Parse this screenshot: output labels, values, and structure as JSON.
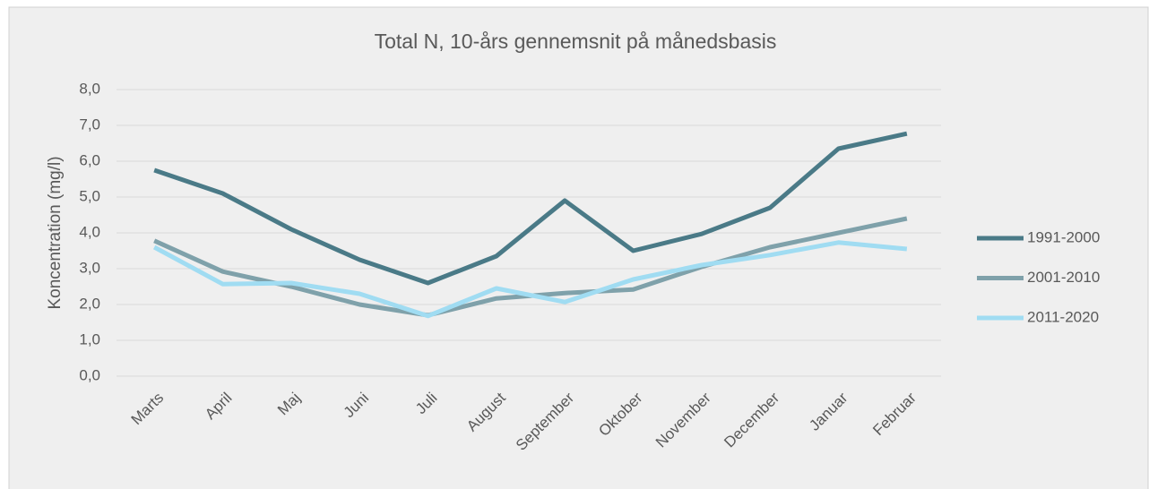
{
  "chart_data": {
    "type": "line",
    "title": "Total N, 10-års gennemsnit på månedsbasis",
    "y_label": "Koncentration (mg/l)",
    "categories": [
      "Marts",
      "April",
      "Maj",
      "Juni",
      "Juli",
      "August",
      "September",
      "Oktober",
      "November",
      "December",
      "Januar",
      "Februar"
    ],
    "series": [
      {
        "name": "1991-2000",
        "color": "#4a7a87",
        "values": [
          5.75,
          5.1,
          4.1,
          3.25,
          2.6,
          3.35,
          4.9,
          3.5,
          3.97,
          4.7,
          6.35,
          6.77
        ]
      },
      {
        "name": "2001-2010",
        "color": "#7fa1aa",
        "values": [
          3.78,
          2.92,
          2.5,
          2.0,
          1.7,
          2.17,
          2.32,
          2.42,
          3.05,
          3.6,
          4.0,
          4.4
        ]
      },
      {
        "name": "2011-2020",
        "color": "#a0dcf2",
        "values": [
          3.6,
          2.57,
          2.6,
          2.3,
          1.68,
          2.45,
          2.07,
          2.7,
          3.1,
          3.38,
          3.73,
          3.55
        ]
      }
    ],
    "ylim": [
      0,
      8
    ],
    "yticks": [
      {
        "value": 0,
        "label": "0,0"
      },
      {
        "value": 1,
        "label": "1,0"
      },
      {
        "value": 2,
        "label": "2,0"
      },
      {
        "value": 3,
        "label": "3,0"
      },
      {
        "value": 4,
        "label": "4,0"
      },
      {
        "value": 5,
        "label": "5,0"
      },
      {
        "value": 6,
        "label": "6,0"
      },
      {
        "value": 7,
        "label": "7,0"
      },
      {
        "value": 8,
        "label": "8,0"
      }
    ],
    "grid": true,
    "legend": "right"
  }
}
